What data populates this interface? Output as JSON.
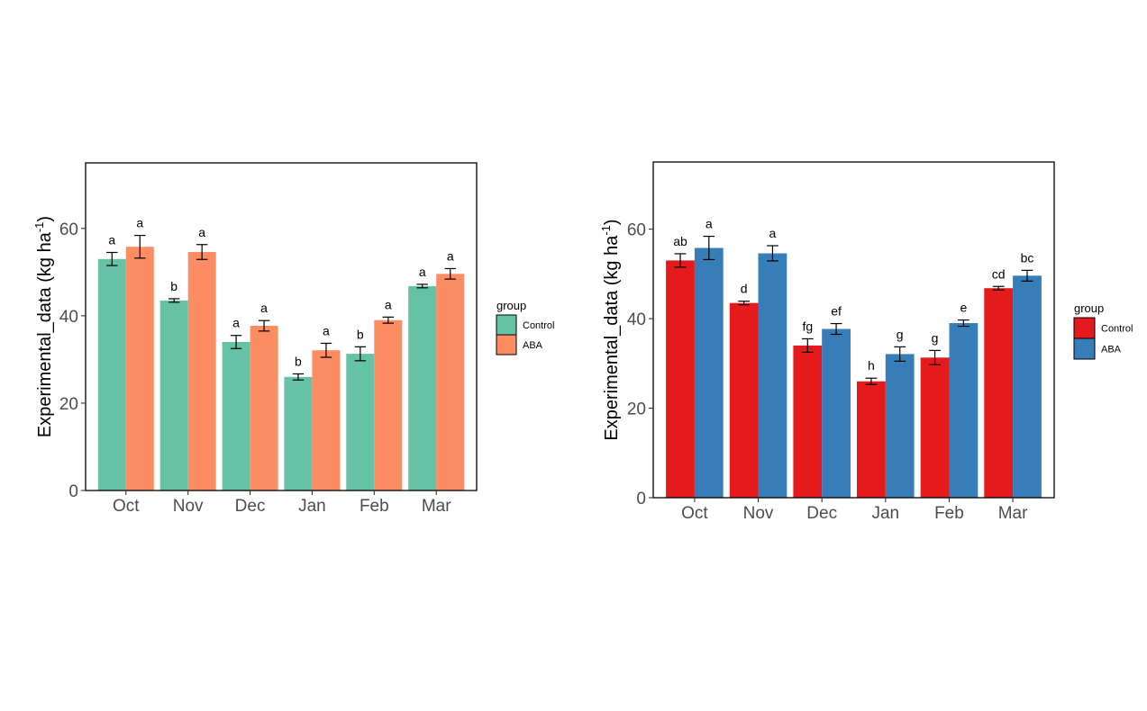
{
  "chart_data": [
    {
      "type": "bar",
      "categories": [
        "Oct",
        "Nov",
        "Dec",
        "Jan",
        "Feb",
        "Mar"
      ],
      "ylabel": "Experimental_data (kg ha",
      "ylabel_sup": "-1",
      "ylabel_close": ")",
      "ylim": [
        0,
        75
      ],
      "yticks": [
        0,
        20,
        40,
        60
      ],
      "legend": {
        "title": "group",
        "position": "right"
      },
      "grid": false,
      "colors": {
        "Control": "#66c2a5",
        "ABA": "#fc8d62"
      },
      "series": [
        {
          "name": "Control",
          "color": "#66c2a5",
          "values": [
            53.0,
            43.5,
            34.0,
            26.0,
            31.3,
            46.8
          ],
          "errors": [
            1.5,
            0.4,
            1.5,
            0.7,
            1.6,
            0.4
          ],
          "labels": [
            "a",
            "b",
            "a",
            "b",
            "b",
            "a"
          ]
        },
        {
          "name": "ABA",
          "color": "#fc8d62",
          "values": [
            55.8,
            54.6,
            37.7,
            32.1,
            39.0,
            49.6
          ],
          "errors": [
            2.6,
            1.7,
            1.2,
            1.6,
            0.7,
            1.2
          ],
          "labels": [
            "a",
            "a",
            "a",
            "a",
            "a",
            "a"
          ]
        }
      ]
    },
    {
      "type": "bar",
      "categories": [
        "Oct",
        "Nov",
        "Dec",
        "Jan",
        "Feb",
        "Mar"
      ],
      "ylabel": "Experimental_data (kg ha",
      "ylabel_sup": "-1",
      "ylabel_close": ")",
      "ylim": [
        0,
        75
      ],
      "yticks": [
        0,
        20,
        40,
        60
      ],
      "legend": {
        "title": "group",
        "position": "right"
      },
      "grid": false,
      "colors": {
        "Control": "#e41a1c",
        "ABA": "#377eb8"
      },
      "series": [
        {
          "name": "Control",
          "color": "#e41a1c",
          "values": [
            53.0,
            43.5,
            34.0,
            26.0,
            31.3,
            46.8
          ],
          "errors": [
            1.5,
            0.4,
            1.5,
            0.7,
            1.6,
            0.4
          ],
          "labels": [
            "ab",
            "d",
            "fg",
            "h",
            "g",
            "cd"
          ]
        },
        {
          "name": "ABA",
          "color": "#377eb8",
          "values": [
            55.8,
            54.6,
            37.7,
            32.1,
            39.0,
            49.6
          ],
          "errors": [
            2.6,
            1.7,
            1.2,
            1.6,
            0.7,
            1.2
          ],
          "labels": [
            "a",
            "a",
            "ef",
            "g",
            "e",
            "bc"
          ]
        }
      ]
    }
  ]
}
